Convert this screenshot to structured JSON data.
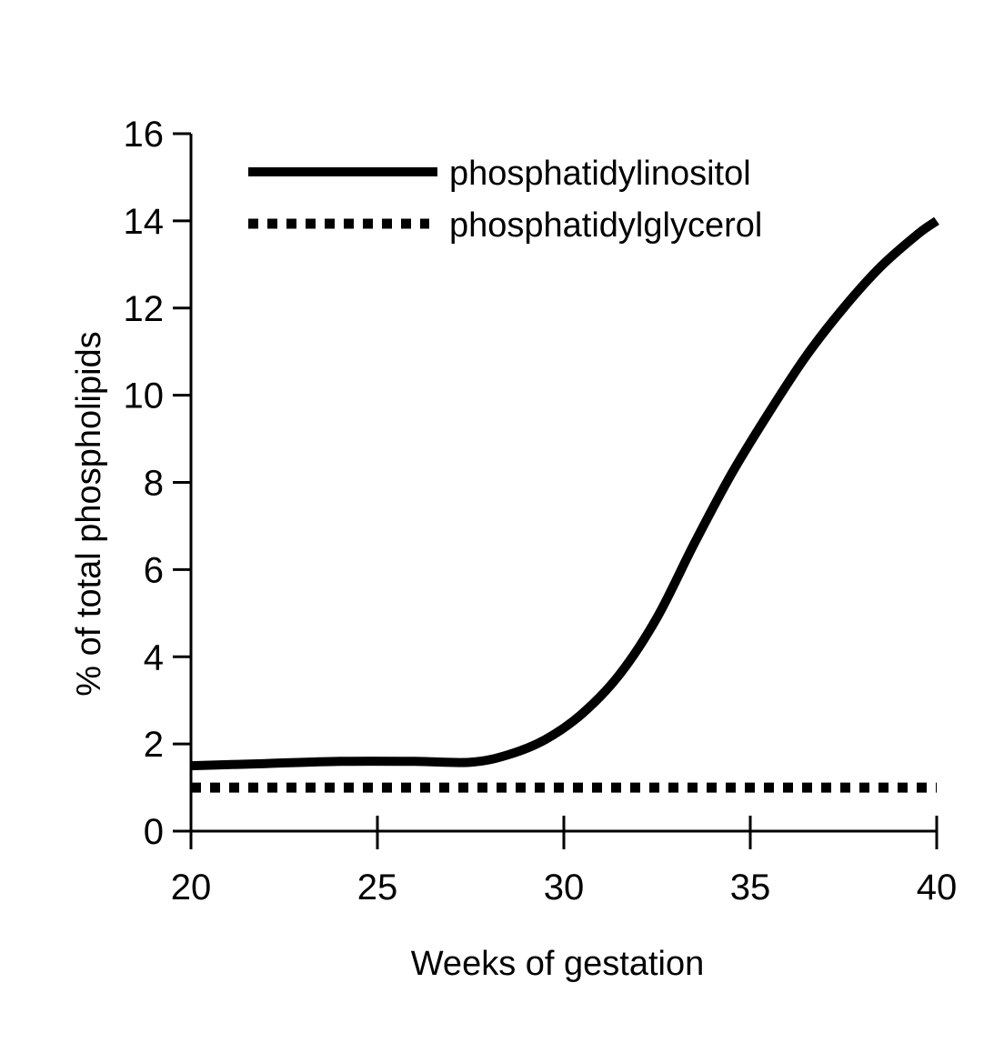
{
  "chart_data": {
    "type": "line",
    "title": "",
    "xlabel": "Weeks of gestation",
    "ylabel": "% of total phospholipids",
    "xlim": [
      20,
      40
    ],
    "ylim": [
      0,
      16
    ],
    "x_ticks": [
      20,
      25,
      30,
      35,
      40
    ],
    "y_ticks": [
      0,
      2,
      4,
      6,
      8,
      10,
      12,
      14,
      16
    ],
    "grid": false,
    "legend_position": "top-left",
    "series": [
      {
        "name": "phosphatidylinositol",
        "line_style": "solid",
        "color": "#000000",
        "x": [
          20,
          22,
          24,
          26,
          27.5,
          28.5,
          29.5,
          30.5,
          31.5,
          32.5,
          33.5,
          34.5,
          35.5,
          36.5,
          37.5,
          38.5,
          39.5,
          40
        ],
        "y": [
          1.5,
          1.55,
          1.6,
          1.6,
          1.58,
          1.75,
          2.1,
          2.7,
          3.6,
          4.9,
          6.6,
          8.2,
          9.6,
          10.9,
          12.0,
          12.95,
          13.7,
          14.0
        ]
      },
      {
        "name": "phosphatidylglycerol",
        "line_style": "dotted",
        "color": "#000000",
        "x": [
          20,
          40
        ],
        "y": [
          1.0,
          1.0
        ]
      }
    ]
  }
}
